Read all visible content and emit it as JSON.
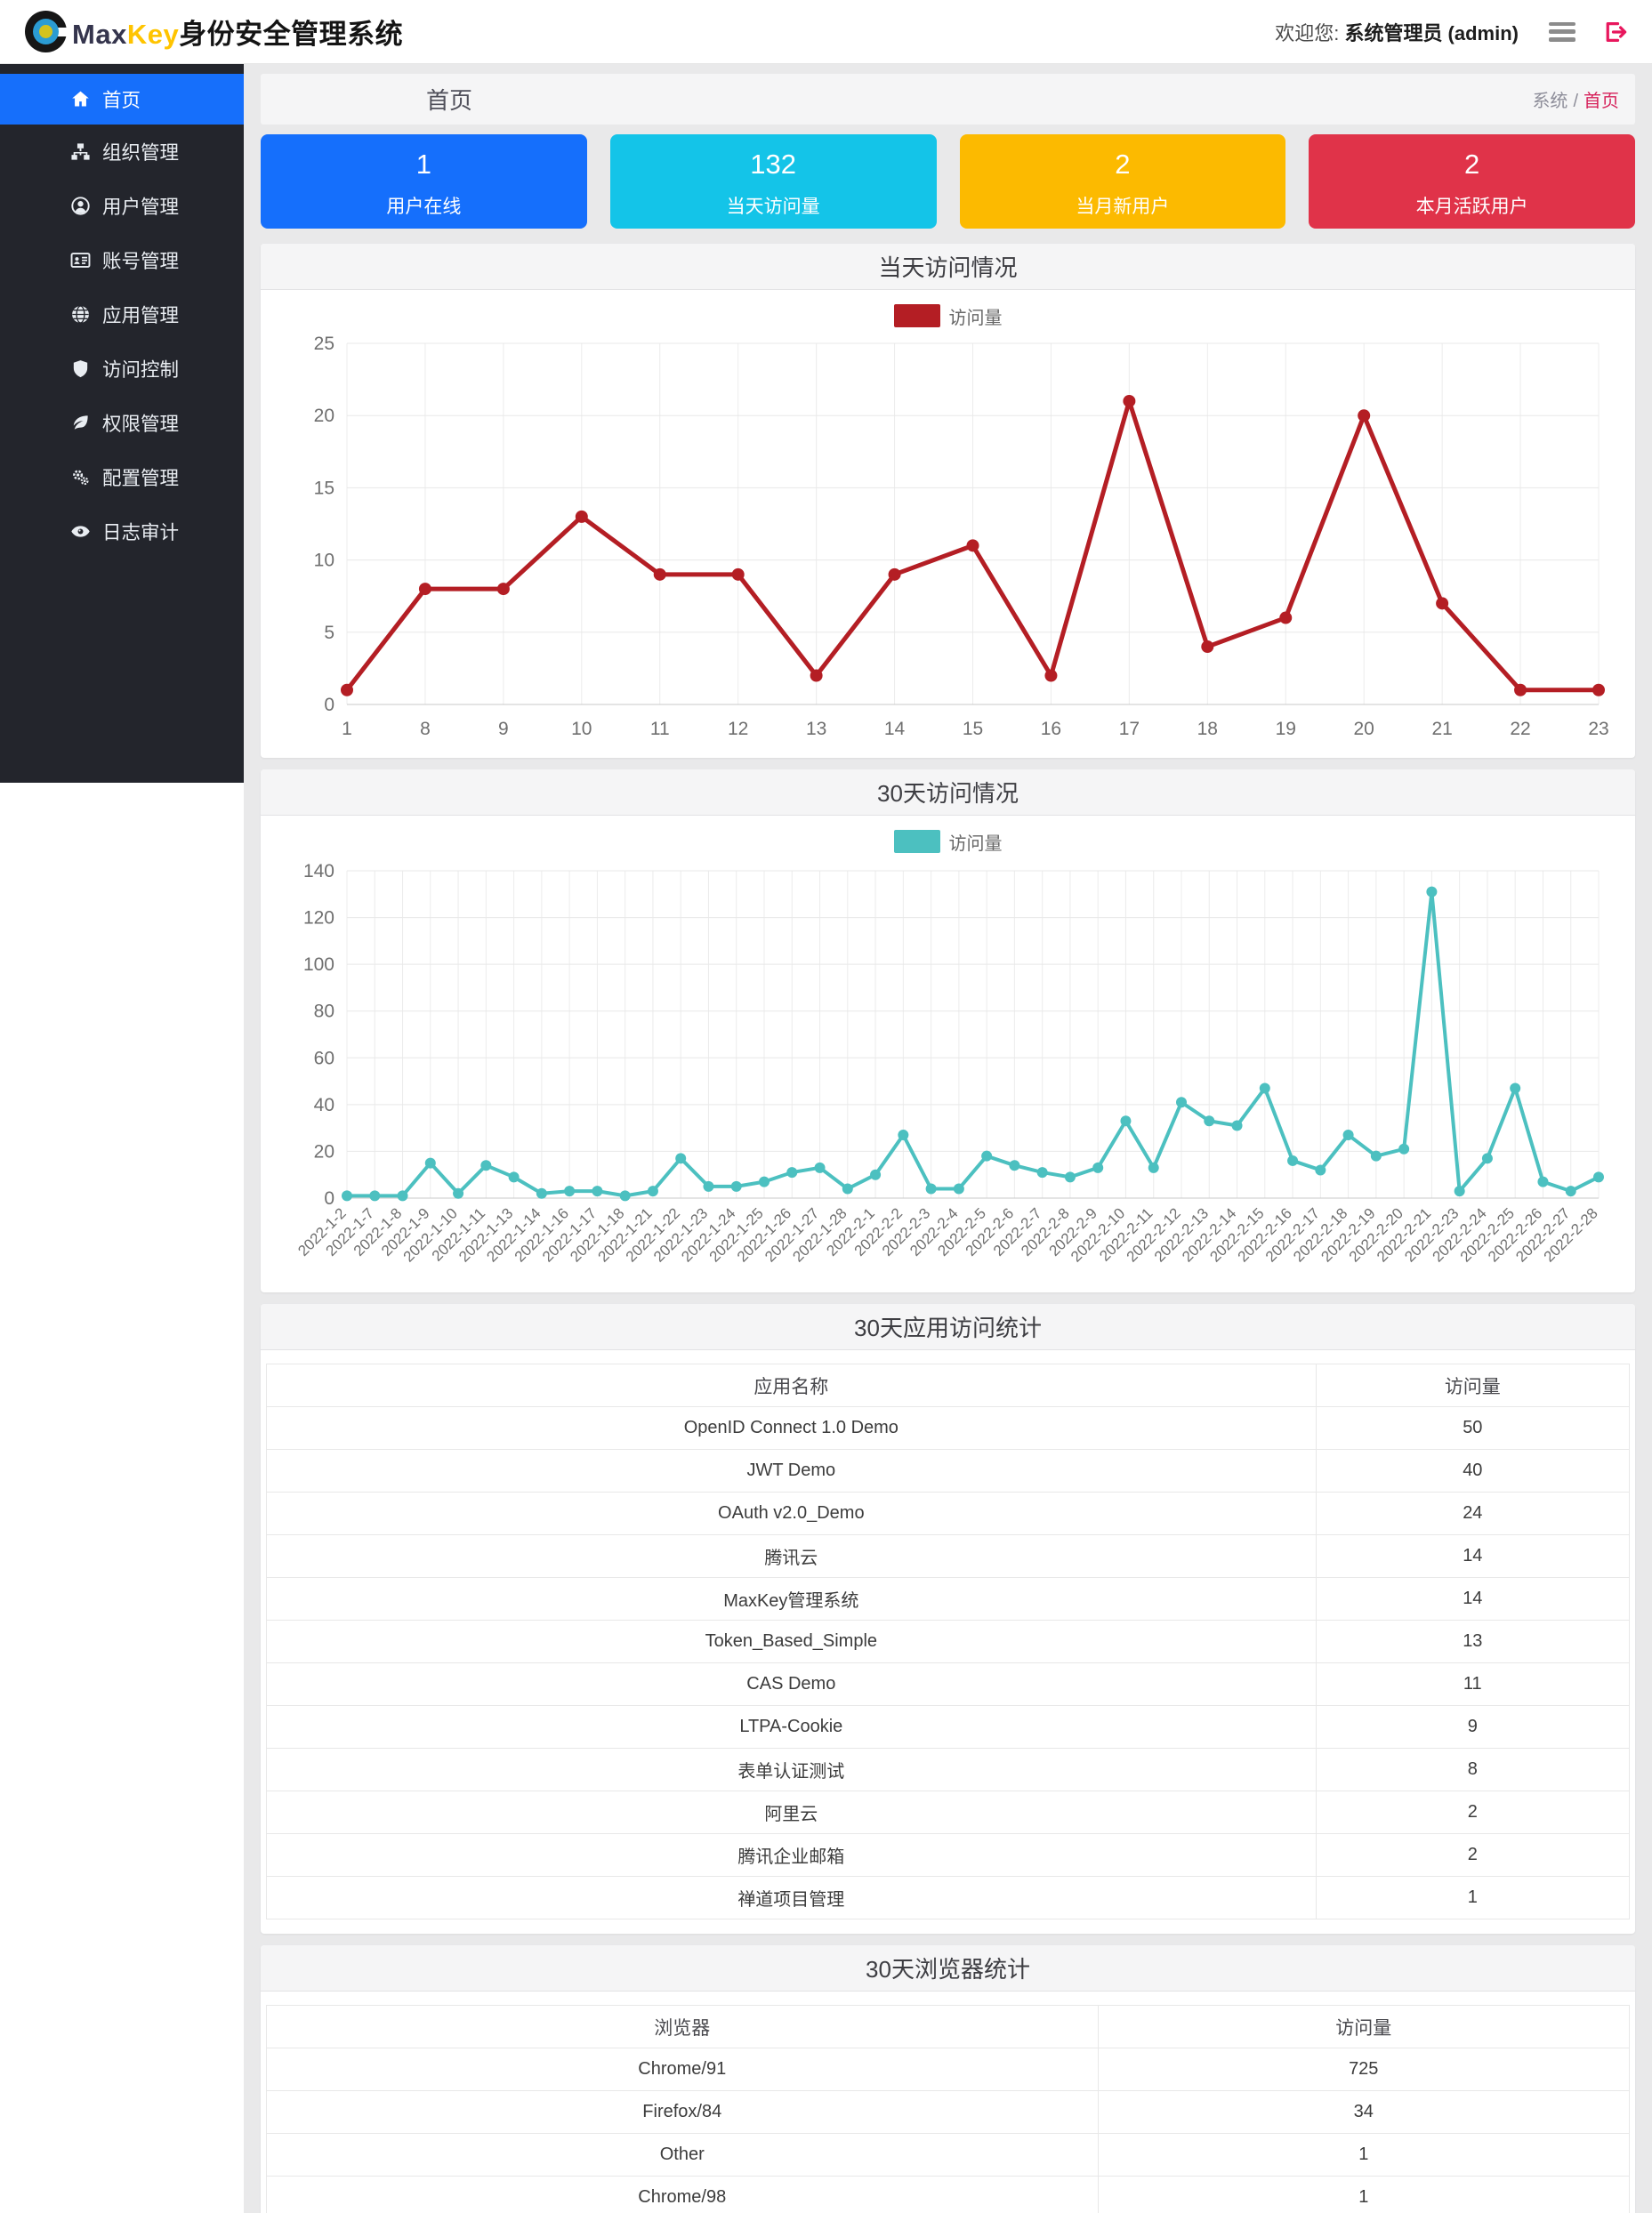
{
  "header": {
    "brand_max": "Max",
    "brand_key": "Key",
    "brand_suffix": "身份安全管理系统",
    "welcome_prefix": "欢迎您: ",
    "welcome_user": "系统管理员 (admin)"
  },
  "sidebar": {
    "items": [
      {
        "id": "home",
        "icon": "home-icon",
        "label": "首页",
        "active": true
      },
      {
        "id": "org",
        "icon": "sitemap-icon",
        "label": "组织管理",
        "active": false
      },
      {
        "id": "user",
        "icon": "user-icon",
        "label": "用户管理",
        "active": false
      },
      {
        "id": "account",
        "icon": "id-card-icon",
        "label": "账号管理",
        "active": false
      },
      {
        "id": "app",
        "icon": "globe-icon",
        "label": "应用管理",
        "active": false
      },
      {
        "id": "access",
        "icon": "shield-icon",
        "label": "访问控制",
        "active": false
      },
      {
        "id": "perm",
        "icon": "leaf-icon",
        "label": "权限管理",
        "active": false
      },
      {
        "id": "config",
        "icon": "gears-icon",
        "label": "配置管理",
        "active": false
      },
      {
        "id": "audit",
        "icon": "eye-icon",
        "label": "日志审计",
        "active": false
      }
    ]
  },
  "breadcrumb": {
    "title": "首页",
    "section": "系统",
    "separator": "/",
    "current": "首页"
  },
  "stats": [
    {
      "value": "1",
      "label": "用户在线",
      "color": "#156ffc"
    },
    {
      "value": "132",
      "label": "当天访问量",
      "color": "#14c4e8"
    },
    {
      "value": "2",
      "label": "当月新用户",
      "color": "#fcba00"
    },
    {
      "value": "2",
      "label": "本月活跃用户",
      "color": "#e03349"
    }
  ],
  "panels": [
    {
      "title": "当天访问情况"
    },
    {
      "title": "30天访问情况"
    },
    {
      "title": "30天应用访问统计"
    },
    {
      "title": "30天浏览器统计"
    }
  ],
  "chart_data": [
    {
      "type": "line",
      "title": "当天访问情况",
      "legend": "访问量",
      "color": "#b41e24",
      "categories": [
        "1",
        "8",
        "9",
        "10",
        "11",
        "12",
        "13",
        "14",
        "15",
        "16",
        "17",
        "18",
        "19",
        "20",
        "21",
        "22",
        "23"
      ],
      "values": [
        1,
        8,
        8,
        13,
        9,
        9,
        2,
        9,
        11,
        2,
        21,
        4,
        6,
        20,
        7,
        1,
        1
      ],
      "xlabel": "",
      "ylabel": "",
      "ylim": [
        0,
        25
      ],
      "ytick": 5,
      "grid": true,
      "legend_position": "top-center"
    },
    {
      "type": "line",
      "title": "30天访问情况",
      "legend": "访问量",
      "color": "#4cc0c0",
      "categories": [
        "2022-1-2",
        "2022-1-7",
        "2022-1-8",
        "2022-1-9",
        "2022-1-10",
        "2022-1-11",
        "2022-1-13",
        "2022-1-14",
        "2022-1-16",
        "2022-1-17",
        "2022-1-18",
        "2022-1-21",
        "2022-1-22",
        "2022-1-23",
        "2022-1-24",
        "2022-1-25",
        "2022-1-26",
        "2022-1-27",
        "2022-1-28",
        "2022-2-1",
        "2022-2-2",
        "2022-2-3",
        "2022-2-4",
        "2022-2-5",
        "2022-2-6",
        "2022-2-7",
        "2022-2-8",
        "2022-2-9",
        "2022-2-10",
        "2022-2-11",
        "2022-2-12",
        "2022-2-13",
        "2022-2-14",
        "2022-2-15",
        "2022-2-16",
        "2022-2-17",
        "2022-2-18",
        "2022-2-19",
        "2022-2-20",
        "2022-2-21",
        "2022-2-23",
        "2022-2-24",
        "2022-2-25",
        "2022-2-26",
        "2022-2-27",
        "2022-2-28"
      ],
      "values": [
        1,
        1,
        1,
        15,
        2,
        14,
        9,
        2,
        3,
        3,
        1,
        3,
        17,
        5,
        5,
        7,
        11,
        13,
        4,
        10,
        27,
        4,
        4,
        18,
        14,
        11,
        9,
        13,
        33,
        13,
        41,
        33,
        31,
        47,
        16,
        12,
        27,
        18,
        21,
        131,
        3,
        17,
        47,
        7,
        3,
        9
      ],
      "xlabel": "",
      "ylabel": "",
      "ylim": [
        0,
        140
      ],
      "ytick": 20,
      "grid": true,
      "legend_position": "top-center"
    }
  ],
  "tables": [
    {
      "title": "30天应用访问统计",
      "headers": [
        "应用名称",
        "访问量"
      ],
      "rows": [
        [
          "OpenID Connect 1.0 Demo",
          "50"
        ],
        [
          "JWT Demo",
          "40"
        ],
        [
          "OAuth v2.0_Demo",
          "24"
        ],
        [
          "腾讯云",
          "14"
        ],
        [
          "MaxKey管理系统",
          "14"
        ],
        [
          "Token_Based_Simple",
          "13"
        ],
        [
          "CAS Demo",
          "11"
        ],
        [
          "LTPA-Cookie",
          "9"
        ],
        [
          "表单认证测试",
          "8"
        ],
        [
          "阿里云",
          "2"
        ],
        [
          "腾讯企业邮箱",
          "2"
        ],
        [
          "禅道项目管理",
          "1"
        ]
      ]
    },
    {
      "title": "30天浏览器统计",
      "headers": [
        "浏览器",
        "访问量"
      ],
      "rows": [
        [
          "Chrome/91",
          "725"
        ],
        [
          "Firefox/84",
          "34"
        ],
        [
          "Other",
          "1"
        ],
        [
          "Chrome/98",
          "1"
        ]
      ]
    }
  ]
}
